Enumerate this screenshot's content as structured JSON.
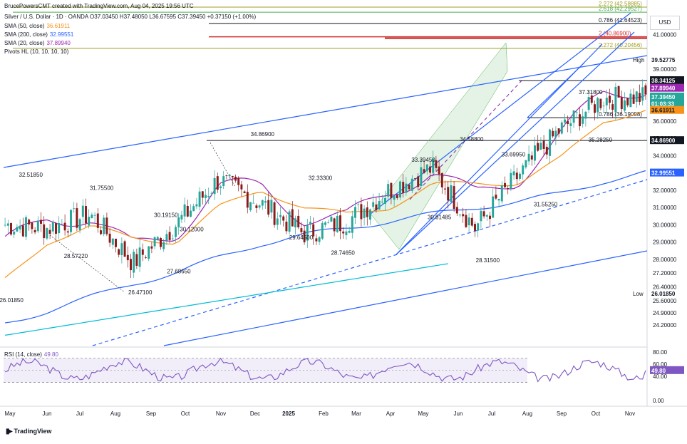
{
  "header": {
    "creator_line": "BrucePowersCMT created with TradingView.com, Aug 04, 2025 19:56 UTC",
    "symbol_line": "Silver / U.S. Dollar · 1D · OANDA  O37.03450  H37.48050  L36.67595  C37.39450  +0.37150 (+1.00%)",
    "indicators": [
      {
        "label": "SMA (50, close)",
        "value": "36.61911",
        "color": "#f7931a"
      },
      {
        "label": "SMA (200, close)",
        "value": "32.99551",
        "color": "#2962ff"
      },
      {
        "label": "SMA (20, close)",
        "value": "37.89940",
        "color": "#9c27b0"
      },
      {
        "label": "Pivots HL (10, 10, 10, 10)",
        "value": "",
        "color": "#131722"
      }
    ]
  },
  "axis": {
    "currency": "USD",
    "price_ticks": [
      "41.00000",
      "39.00000",
      "38.00000",
      "36.00000",
      "35.00000",
      "34.00000",
      "33.00000",
      "32.00000",
      "31.00000",
      "30.00000",
      "29.00000",
      "28.00000",
      "27.20000",
      "26.40000",
      "25.60000",
      "24.90000",
      "24.20000"
    ],
    "time_ticks": [
      "May",
      "Jun",
      "Jul",
      "Aug",
      "Sep",
      "Oct",
      "Nov",
      "Dec",
      "2025",
      "Feb",
      "Mar",
      "Apr",
      "May",
      "Jun",
      "Jul",
      "Aug",
      "Sep",
      "Oct",
      "Nov"
    ],
    "rsi_ticks": [
      "80.00",
      "60.00",
      "40.00",
      "0.00"
    ]
  },
  "price_tags": [
    {
      "text": "39.52775",
      "bg": "#ffffff",
      "fg": "#131722",
      "price": 39.52775,
      "label": "High"
    },
    {
      "text": "38.34125",
      "bg": "#131722",
      "fg": "#ffffff",
      "price": 38.34125
    },
    {
      "text": "37.89940",
      "bg": "#9c27b0",
      "fg": "#ffffff",
      "price": 37.8994
    },
    {
      "text": "37.39450",
      "bg": "#26a69a",
      "fg": "#ffffff",
      "price": 37.3945
    },
    {
      "text": "01:03:33",
      "bg": "#26a69a",
      "fg": "#ffffff",
      "price": 37.0
    },
    {
      "text": "36.61911",
      "bg": "#f7931a",
      "fg": "#131722",
      "price": 36.61911
    },
    {
      "text": "34.86900",
      "bg": "#131722",
      "fg": "#ffffff",
      "price": 34.869
    },
    {
      "text": "32.99551",
      "bg": "#2962ff",
      "fg": "#ffffff",
      "price": 32.99551
    },
    {
      "text": "26.01850",
      "bg": "#ffffff",
      "fg": "#131722",
      "price": 26.0185,
      "label": "Low"
    },
    {
      "text": "49.80",
      "bg": "#7e57c2",
      "fg": "#ffffff",
      "rsi": 49.8
    }
  ],
  "fib_levels": [
    {
      "label": "2.272 (42.58885)",
      "color": "#9e9d24"
    },
    {
      "label": "2.618 (42.29527)",
      "color": "#4caf50"
    },
    {
      "label": "0.786 (41.64523)",
      "color": "#131722"
    },
    {
      "label": "2 (40.86900)",
      "color": "#d32f2f"
    },
    {
      "label": "2.272 (40.20456)",
      "color": "#9e9d24"
    },
    {
      "label": "0.786 (36.19098)",
      "color": "#131722"
    }
  ],
  "pivots": [
    {
      "text": "32.51850",
      "i": 8,
      "price": 32.5185,
      "pos": "above"
    },
    {
      "text": "31.75500",
      "i": 30,
      "price": 31.755,
      "pos": "above"
    },
    {
      "text": "28.57220",
      "i": 22,
      "price": 28.5722,
      "pos": "below"
    },
    {
      "text": "26.47100",
      "i": 42,
      "price": 26.471,
      "pos": "below"
    },
    {
      "text": "30.19150",
      "i": 50,
      "price": 30.1915,
      "pos": "above"
    },
    {
      "text": "30.12000",
      "i": 58,
      "price": 30.12,
      "pos": "below"
    },
    {
      "text": "27.68650",
      "i": 54,
      "price": 27.6865,
      "pos": "below"
    },
    {
      "text": "34.86900",
      "i": 80,
      "price": 34.869,
      "pos": "above"
    },
    {
      "text": "32.33300",
      "i": 98,
      "price": 32.333,
      "pos": "above"
    },
    {
      "text": "29.64500",
      "i": 92,
      "price": 29.645,
      "pos": "below"
    },
    {
      "text": "28.74650",
      "i": 105,
      "price": 28.7465,
      "pos": "below"
    },
    {
      "text": "33.39450",
      "i": 130,
      "price": 33.3945,
      "pos": "above"
    },
    {
      "text": "34.58800",
      "i": 145,
      "price": 34.588,
      "pos": "above"
    },
    {
      "text": "30.81485",
      "i": 135,
      "price": 30.81485,
      "pos": "below"
    },
    {
      "text": "28.31500",
      "i": 150,
      "price": 28.315,
      "pos": "below"
    },
    {
      "text": "33.69950",
      "i": 158,
      "price": 33.6995,
      "pos": "above"
    },
    {
      "text": "31.55250",
      "i": 168,
      "price": 31.5525,
      "pos": "below"
    },
    {
      "text": "35.28250",
      "i": 185,
      "price": 35.2825,
      "pos": "below"
    },
    {
      "text": "37.31800",
      "i": 182,
      "price": 37.318,
      "pos": "above"
    },
    {
      "text": "26.01850",
      "i": 2,
      "price": 26.0185,
      "pos": "below"
    }
  ],
  "rsi_label": "RSI (14, close)",
  "rsi_value": "49.80",
  "logo_text": "TradingView",
  "chart_data": {
    "type": "line",
    "title": "Silver / U.S. Dollar · 1D · OANDA",
    "xlabel": "",
    "ylabel": "USD",
    "ylim": [
      23.0,
      43.0
    ],
    "x": [
      "2024-05",
      "2024-06",
      "2024-07",
      "2024-08",
      "2024-09",
      "2024-10",
      "2024-11",
      "2024-12",
      "2025-01",
      "2025-02",
      "2025-03",
      "2025-04",
      "2025-05",
      "2025-06",
      "2025-07",
      "2025-08"
    ],
    "series": [
      {
        "name": "Silver / U.S. Dollar",
        "color": "#131722",
        "values": [
          30.0,
          29.8,
          30.6,
          27.8,
          30.0,
          32.6,
          31.2,
          29.5,
          30.2,
          32.0,
          33.3,
          29.8,
          32.8,
          35.5,
          37.3,
          37.39
        ]
      },
      {
        "name": "SMA (20, close)",
        "color": "#9c27b0",
        "values": [
          28.9,
          30.4,
          30.4,
          28.7,
          29.5,
          32.2,
          32.2,
          30.4,
          30.4,
          31.9,
          33.1,
          31.7,
          32.6,
          35.2,
          37.6,
          37.9
        ]
      },
      {
        "name": "SMA (50, close)",
        "color": "#f7931a",
        "values": [
          26.8,
          29.0,
          29.9,
          29.2,
          29.0,
          31.0,
          32.0,
          31.0,
          30.6,
          31.0,
          32.3,
          32.4,
          32.4,
          33.8,
          36.0,
          36.62
        ]
      },
      {
        "name": "SMA (200, close)",
        "color": "#2962ff",
        "values": [
          24.3,
          25.0,
          25.8,
          26.6,
          27.2,
          28.1,
          28.9,
          29.4,
          29.8,
          30.2,
          30.6,
          31.0,
          31.3,
          31.8,
          32.5,
          33.0
        ]
      }
    ],
    "grid": false,
    "legend": "top-left"
  }
}
